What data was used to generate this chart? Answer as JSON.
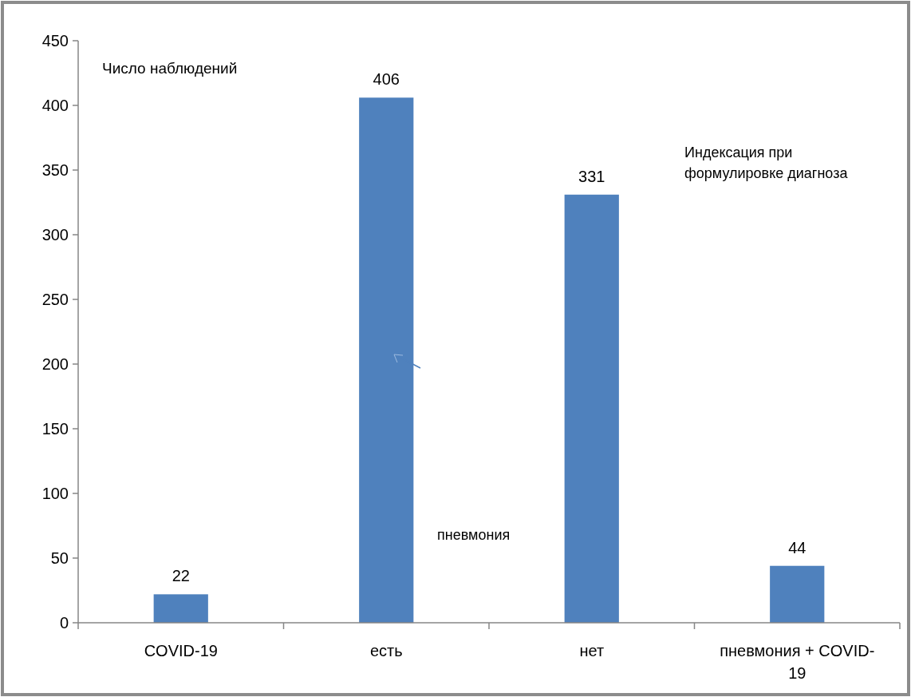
{
  "chart_data": {
    "type": "bar",
    "ylabel": "Число наблюдений",
    "categories": [
      "COVID-19",
      "есть",
      "нет",
      "пневмония + COVID-19"
    ],
    "values": [
      22,
      406,
      331,
      44
    ],
    "color": "#4f81bd",
    "data_labels": true,
    "ylim": [
      0,
      450
    ],
    "yticks": [
      0,
      50,
      100,
      150,
      200,
      250,
      300,
      350,
      400,
      450
    ],
    "grid": false,
    "annotations": [
      "Индексация при формулировке диагноза",
      "пневмония"
    ]
  }
}
